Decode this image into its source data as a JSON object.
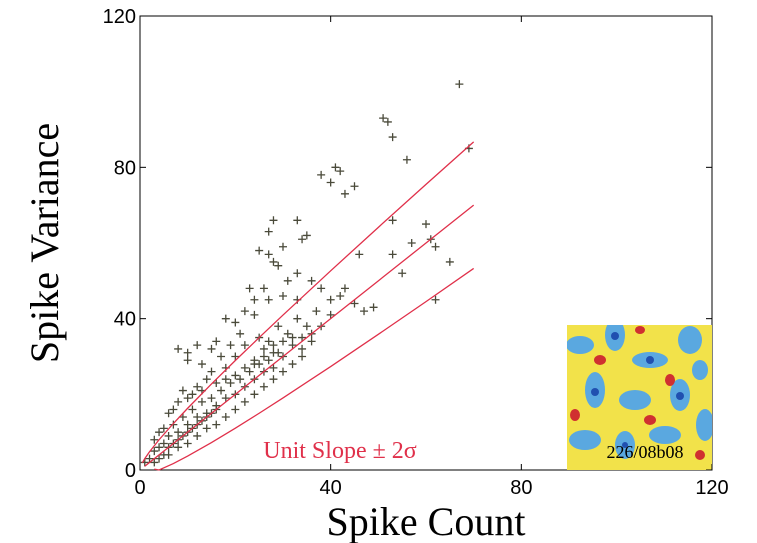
{
  "chart_data": {
    "type": "scatter",
    "x_label": "Spike Count",
    "y_label": "Spike Variance",
    "annotation": "Unit Slope ± 2σ",
    "inset_label": "226/08b08",
    "xlim": [
      0,
      120
    ],
    "ylim": [
      0,
      120
    ],
    "xticks": [
      0,
      40,
      80,
      120
    ],
    "yticks": [
      0,
      40,
      80,
      120
    ],
    "series": [
      {
        "color": "#4a4a3a",
        "x": [
          67,
          51,
          52,
          53,
          56,
          69,
          41,
          42,
          38,
          40,
          45,
          43,
          33,
          28,
          35,
          34,
          27,
          30,
          53,
          60,
          57,
          53,
          46,
          61,
          62,
          65,
          55,
          27,
          25,
          28,
          29,
          31,
          33,
          26,
          23,
          24,
          27,
          30,
          36,
          38,
          43,
          45,
          47,
          49,
          42,
          40,
          33,
          62,
          22,
          18,
          20,
          24,
          16,
          15,
          10,
          12,
          8,
          10,
          13,
          15,
          18,
          20,
          22,
          25,
          27,
          29,
          31,
          33,
          35,
          37,
          40,
          21,
          19,
          17,
          26,
          24,
          28,
          30,
          32,
          34,
          36,
          38,
          3,
          2,
          1,
          4,
          5,
          6,
          7,
          8,
          9,
          10,
          11,
          12,
          13,
          14,
          15,
          16,
          17,
          18,
          19,
          20,
          21,
          22,
          23,
          24,
          25,
          26,
          27,
          28,
          29,
          5,
          6,
          7,
          8,
          9,
          10,
          11,
          12,
          13,
          14,
          15,
          16,
          4,
          6,
          8,
          9,
          11,
          12,
          14,
          3,
          5,
          7,
          10,
          13,
          16,
          18,
          20,
          22,
          24,
          26,
          28,
          30,
          32,
          34,
          36,
          3,
          4,
          6,
          8,
          10,
          12,
          14,
          16,
          18,
          20,
          22,
          24,
          26,
          28,
          30,
          32,
          34
        ],
        "values": [
          102,
          93,
          92,
          88,
          82,
          85,
          80,
          79,
          78,
          76,
          75,
          73,
          66,
          66,
          62,
          61,
          63,
          59,
          66,
          65,
          60,
          57,
          57,
          61,
          59,
          55,
          52,
          57,
          58,
          55,
          54,
          50,
          52,
          48,
          48,
          45,
          45,
          46,
          50,
          48,
          48,
          44,
          42,
          43,
          46,
          45,
          45,
          45,
          42,
          40,
          39,
          41,
          34,
          32,
          31,
          33,
          32,
          29,
          28,
          26,
          27,
          30,
          33,
          35,
          34,
          38,
          36,
          40,
          38,
          42,
          41,
          36,
          33,
          30,
          30,
          28,
          31,
          30,
          33,
          35,
          36,
          38,
          5,
          3,
          2,
          6,
          7,
          9,
          12,
          10,
          14,
          12,
          16,
          14,
          18,
          15,
          19,
          17,
          21,
          19,
          23,
          20,
          24,
          22,
          26,
          24,
          28,
          26,
          29,
          27,
          31,
          4,
          6,
          7,
          8,
          9,
          10,
          11,
          12,
          13,
          14,
          15,
          16,
          10,
          15,
          18,
          21,
          20,
          22,
          24,
          8,
          11,
          16,
          19,
          21,
          23,
          24,
          25,
          27,
          29,
          32,
          33,
          34,
          35,
          32,
          34,
          2,
          3,
          4,
          6,
          7,
          9,
          11,
          12,
          14,
          16,
          18,
          20,
          22,
          24,
          26,
          28,
          30
        ]
      },
      {
        "type": "line",
        "color": "#e0304a",
        "x": [
          0.5,
          1,
          2,
          4,
          7,
          10,
          15,
          20,
          25,
          30,
          40,
          50,
          60,
          70
        ],
        "values": [
          1.91,
          3,
          4.83,
          8,
          12.29,
          16.32,
          22.75,
          28.94,
          35,
          40.95,
          52.65,
          64.14,
          75.49,
          86.73
        ]
      },
      {
        "type": "line",
        "color": "#e0304a",
        "x": [
          1,
          2,
          4,
          7,
          10,
          15,
          20,
          25,
          30,
          40,
          50,
          60,
          70
        ],
        "values": [
          1,
          2,
          4,
          7,
          10,
          15,
          20,
          25,
          30,
          40,
          50,
          60,
          70
        ]
      },
      {
        "type": "line",
        "color": "#e0304a",
        "x": [
          3,
          4,
          7,
          10,
          15,
          20,
          25,
          30,
          40,
          50,
          60,
          70
        ],
        "values": [
          0.22,
          0,
          1.71,
          3.68,
          7.25,
          11.06,
          15,
          19.05,
          27.35,
          35.86,
          44.51,
          53.27
        ]
      }
    ]
  }
}
